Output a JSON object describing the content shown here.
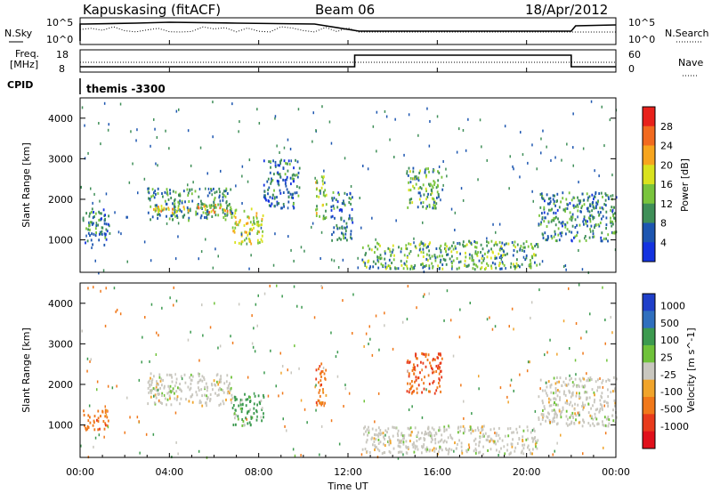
{
  "header": {
    "station": "Kapuskasing (fitACF)",
    "beam": "Beam 06",
    "date": "18/Apr/2012"
  },
  "control_panels": {
    "nsky_label": "N.Sky",
    "nsearch_label": "N.Search",
    "noise_ticks_top": "10^5",
    "noise_ticks_bottom": "10^0",
    "freq_label_line1": "Freq.",
    "freq_label_line2": "[MHz]",
    "freq_ticks": [
      "18",
      "8"
    ],
    "nave_label": "Nave",
    "nave_ticks": [
      "60",
      "0"
    ],
    "cpid_label": "CPID",
    "cpid_value": "themis -3300"
  },
  "x_axis": {
    "label": "Time UT",
    "ticks": [
      "00:00",
      "04:00",
      "08:00",
      "12:00",
      "16:00",
      "20:00",
      "00:00"
    ],
    "hours": [
      0,
      4,
      8,
      12,
      16,
      20,
      24
    ]
  },
  "panels": {
    "power": {
      "ylabel": "Slant Range [km]",
      "colorbar_label": "Power [dB]",
      "colorbar_ticks": [
        "28",
        "24",
        "20",
        "16",
        "12",
        "8",
        "4"
      ],
      "colorbar_colors": [
        "#e8211b",
        "#f26a1f",
        "#f7a51e",
        "#d9e21e",
        "#79c43c",
        "#3f8f58",
        "#1d56b0",
        "#1433e0"
      ]
    },
    "velocity": {
      "ylabel": "Slant Range [km]",
      "colorbar_label": "Velocity [m s^-1]",
      "colorbar_ticks": [
        "1000",
        "500",
        "100",
        "25",
        "-25",
        "-100",
        "-500",
        "-1000"
      ],
      "colorbar_colors": [
        "#1f3fc9",
        "#2f6fbe",
        "#3c9a4f",
        "#6fc23a",
        "#c9c7bf",
        "#f0a42b",
        "#f0781a",
        "#e83b1c",
        "#e0101b"
      ]
    },
    "y_ticks": [
      "4000",
      "3000",
      "2000",
      "1000"
    ],
    "y_values": [
      4000,
      3000,
      2000,
      1000
    ]
  },
  "chart_data": [
    {
      "type": "heatmap",
      "title": "Power",
      "xlabel": "Time UT",
      "ylabel": "Slant Range [km]",
      "xlim": [
        0,
        24
      ],
      "ylim": [
        200,
        4500
      ],
      "colorbar_label": "Power [dB]",
      "colorbar_range": [
        0,
        32
      ],
      "regions": [
        {
          "t": [
            0.1,
            1.3
          ],
          "r": [
            900,
            1800
          ],
          "power": 8
        },
        {
          "t": [
            3.0,
            6.8
          ],
          "r": [
            1500,
            2300
          ],
          "power": 10
        },
        {
          "t": [
            3.2,
            6.8
          ],
          "r": [
            1700,
            1900
          ],
          "power": 20
        },
        {
          "t": [
            6.8,
            8.2
          ],
          "r": [
            900,
            1800
          ],
          "power": 18
        },
        {
          "t": [
            8.2,
            9.8
          ],
          "r": [
            1800,
            3000
          ],
          "power": 7
        },
        {
          "t": [
            10.5,
            11.0
          ],
          "r": [
            1500,
            2600
          ],
          "power": 16
        },
        {
          "t": [
            11.2,
            12.2
          ],
          "r": [
            1000,
            2200
          ],
          "power": 8
        },
        {
          "t": [
            14.6,
            16.2
          ],
          "r": [
            1800,
            2800
          ],
          "power": 12
        },
        {
          "t": [
            12.6,
            20.5
          ],
          "r": [
            300,
            1000
          ],
          "power": 12
        },
        {
          "t": [
            20.5,
            24.0
          ],
          "r": [
            1000,
            2200
          ],
          "power": 9
        }
      ]
    },
    {
      "type": "heatmap",
      "title": "Velocity",
      "xlabel": "Time UT",
      "ylabel": "Slant Range [km]",
      "xlim": [
        0,
        24
      ],
      "ylim": [
        200,
        4500
      ],
      "colorbar_label": "Velocity [m s^-1]",
      "colorbar_range": [
        -1000,
        1000
      ],
      "regions": [
        {
          "t": [
            0.1,
            1.3
          ],
          "r": [
            900,
            1400
          ],
          "velocity": -200
        },
        {
          "t": [
            3.0,
            6.8
          ],
          "r": [
            1500,
            2300
          ],
          "velocity": 0
        },
        {
          "t": [
            6.8,
            8.2
          ],
          "r": [
            1000,
            1800
          ],
          "velocity": 150
        },
        {
          "t": [
            10.5,
            11.0
          ],
          "r": [
            1500,
            2600
          ],
          "velocity": -200
        },
        {
          "t": [
            14.6,
            16.2
          ],
          "r": [
            1800,
            2800
          ],
          "velocity": -300
        },
        {
          "t": [
            12.6,
            20.5
          ],
          "r": [
            300,
            1000
          ],
          "velocity": 0
        },
        {
          "t": [
            20.5,
            24.0
          ],
          "r": [
            1000,
            2200
          ],
          "velocity": 0
        }
      ]
    }
  ]
}
